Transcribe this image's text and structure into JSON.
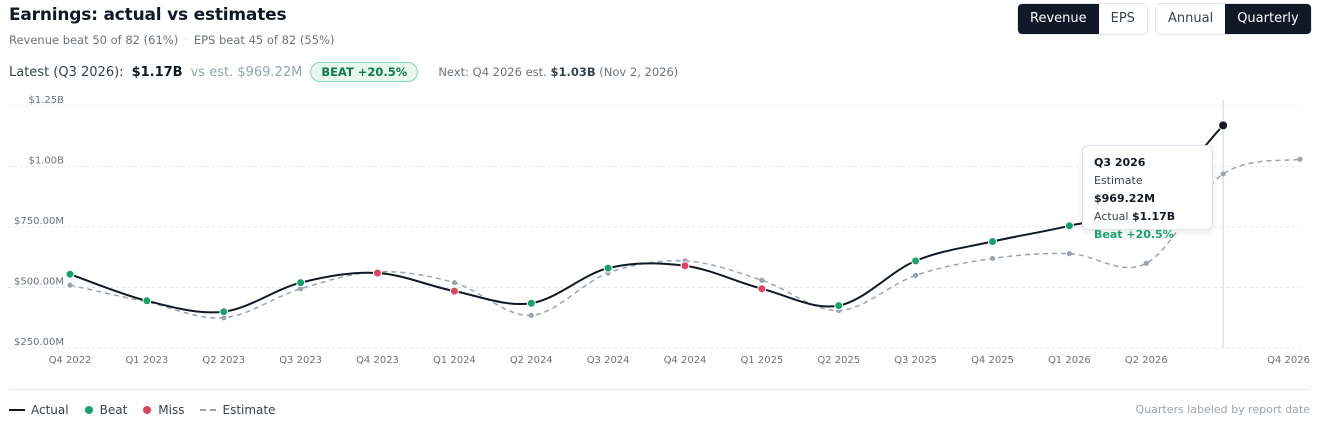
{
  "header": {
    "title": "Earnings: actual vs estimates",
    "revenue_beat": "Revenue beat 50 of 82 (61%)",
    "eps_beat": "EPS beat 45 of 82 (55%)",
    "separator": "·"
  },
  "toggles": {
    "metric": [
      "Revenue",
      "EPS"
    ],
    "metric_selected": "Revenue",
    "period": [
      "Annual",
      "Quarterly"
    ],
    "period_selected": "Quarterly"
  },
  "latest": {
    "label": "Latest (Q3 2026):",
    "actual": "$1.17B",
    "estimate": "vs est. $969.22M",
    "badge": "BEAT +20.5%",
    "next_prefix": "Next: Q4 2026 est.",
    "next_value": "$1.03B",
    "next_date": "(Nov 2, 2026)"
  },
  "tooltip": {
    "quarter": "Q3 2026",
    "estimate_label": "Estimate",
    "estimate_value": "$969.22M",
    "actual_label": "Actual",
    "actual_value": "$1.17B",
    "status": "Beat +20.5%"
  },
  "legend": {
    "actual": "Actual",
    "beat": "Beat",
    "miss": "Miss",
    "estimate": "Estimate",
    "footnote": "Quarters labeled by report date"
  },
  "colors": {
    "actual": "#111827",
    "estimate": "#9aa3b2",
    "beat": "#16a36a",
    "miss": "#e0435c"
  },
  "chart_data": {
    "type": "line",
    "categories": [
      "Q4 2022",
      "Q1 2023",
      "Q2 2023",
      "Q3 2023",
      "Q4 2023",
      "Q1 2024",
      "Q2 2024",
      "Q3 2024",
      "Q4 2024",
      "Q1 2025",
      "Q2 2025",
      "Q3 2025",
      "Q4 2025",
      "Q1 2026",
      "Q2 2026",
      "Q3 2026",
      "Q4 2026"
    ],
    "x_tick_labels": [
      "Q4 2022",
      "Q1 2023",
      "Q2 2023",
      "Q3 2023",
      "Q4 2023",
      "Q1 2024",
      "Q2 2024",
      "Q3 2024",
      "Q4 2024",
      "Q1 2025",
      "Q2 2025",
      "Q3 2025",
      "Q4 2025",
      "Q1 2026",
      "Q2 2026",
      "",
      "Q4 2026"
    ],
    "series": [
      {
        "name": "Actual",
        "values": [
          555,
          445,
          400,
          520,
          560,
          485,
          435,
          580,
          590,
          495,
          425,
          610,
          690,
          755,
          840,
          1170,
          null
        ]
      },
      {
        "name": "Estimate",
        "values": [
          510,
          440,
          375,
          495,
          565,
          520,
          385,
          560,
          610,
          530,
          405,
          550,
          620,
          640,
          600,
          969.22,
          1030
        ]
      }
    ],
    "status": [
      "beat",
      "beat",
      "beat",
      "beat",
      "miss",
      "miss",
      "beat",
      "beat",
      "miss",
      "miss",
      "beat",
      "beat",
      "beat",
      "beat",
      "beat",
      "beat",
      null
    ],
    "highlight_index": 15,
    "ylim": [
      250,
      1250
    ],
    "y_ticks": [
      250,
      500,
      750,
      1000,
      1250
    ],
    "y_tick_labels": [
      "$250.00M",
      "$500.00M",
      "$750.00M",
      "$1.00B",
      "$1.25B"
    ],
    "grid": true,
    "legend_position": "bottom-left"
  }
}
